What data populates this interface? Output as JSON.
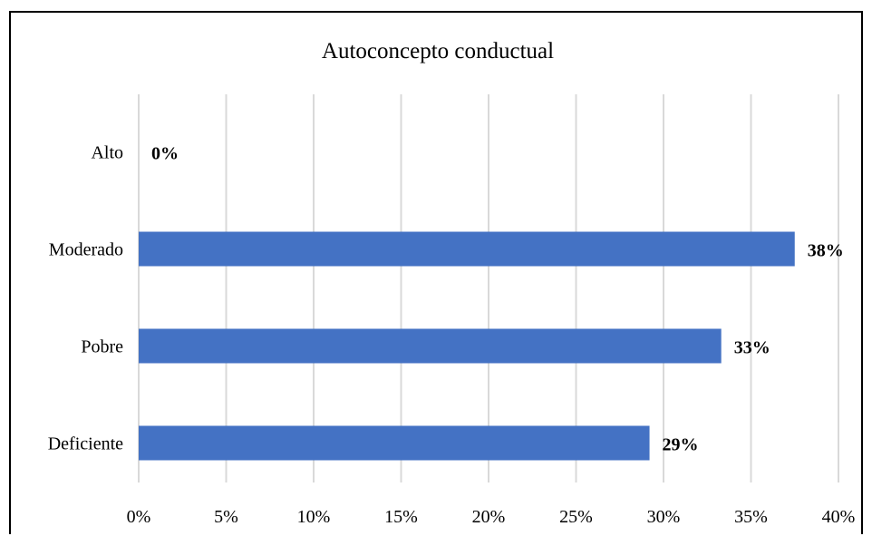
{
  "chart_data": {
    "type": "bar",
    "orientation": "horizontal",
    "title": "Autoconcepto conductual",
    "categories": [
      "Alto",
      "Moderado",
      "Pobre",
      "Deficiente"
    ],
    "values": [
      0,
      37.5,
      33.3,
      29.2
    ],
    "data_labels": [
      "0%",
      "38%",
      "33%",
      "29%"
    ],
    "xlim": [
      0,
      40
    ],
    "x_ticks": [
      0,
      5,
      10,
      15,
      20,
      25,
      30,
      35,
      40
    ],
    "x_tick_labels": [
      "0%",
      "5%",
      "10%",
      "15%",
      "20%",
      "25%",
      "30%",
      "35%",
      "40%"
    ],
    "xlabel": "",
    "ylabel": "",
    "grid": "vertical",
    "legend": "none",
    "bar_color": "#4472c4",
    "grid_color": "#d9d9d9"
  }
}
